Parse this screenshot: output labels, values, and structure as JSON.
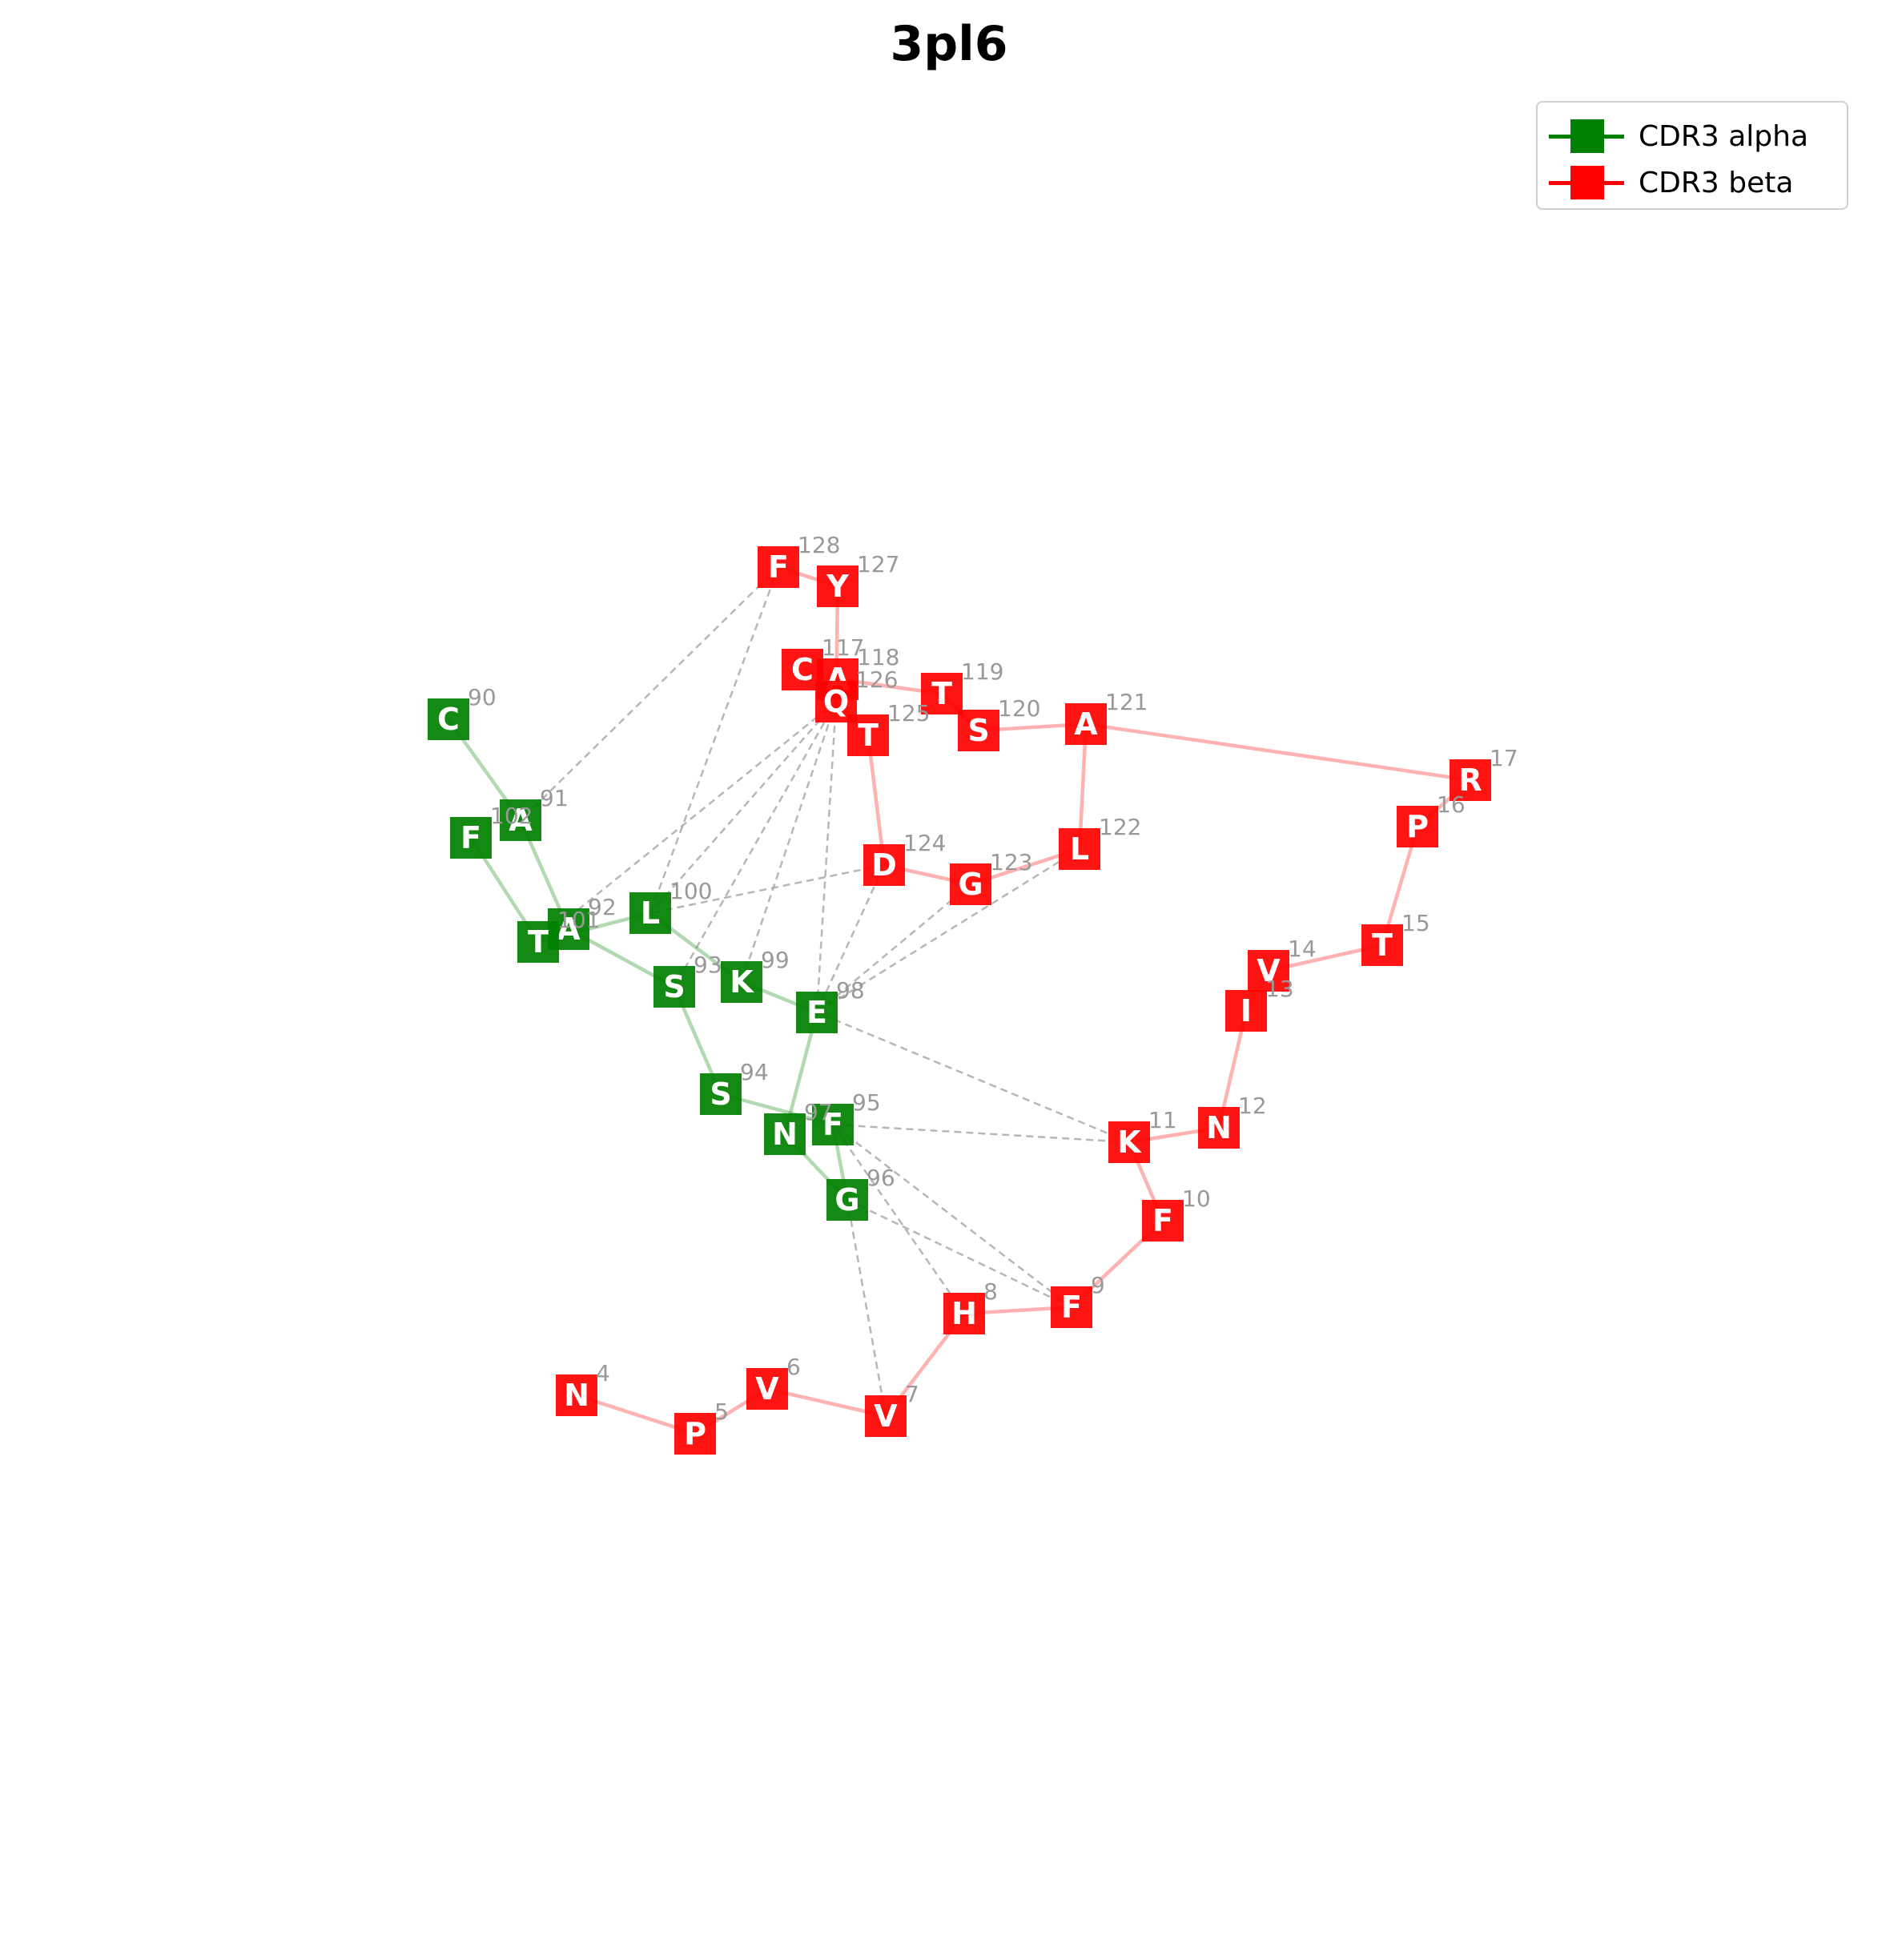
{
  "title": "3pl6",
  "legend": [
    {
      "label": "CDR3 alpha",
      "color": "#008000"
    },
    {
      "label": "CDR3 beta",
      "color": "#ff0000"
    }
  ],
  "colors": {
    "alpha": "#008000",
    "beta": "#ff0000",
    "contact": "#aaaaaa",
    "number": "#999999"
  },
  "chains": {
    "alpha": [
      {
        "n": "90",
        "aa": "C"
      },
      {
        "n": "91",
        "aa": "A"
      },
      {
        "n": "92",
        "aa": "A"
      },
      {
        "n": "93",
        "aa": "S"
      },
      {
        "n": "94",
        "aa": "S"
      },
      {
        "n": "95",
        "aa": "F"
      },
      {
        "n": "96",
        "aa": "G"
      },
      {
        "n": "97",
        "aa": "N"
      },
      {
        "n": "98",
        "aa": "E"
      },
      {
        "n": "99",
        "aa": "K"
      },
      {
        "n": "100",
        "aa": "L"
      },
      {
        "n": "101",
        "aa": "T"
      },
      {
        "n": "102",
        "aa": "F"
      }
    ],
    "beta_tail": [
      {
        "n": "117",
        "aa": "C"
      },
      {
        "n": "118",
        "aa": "A"
      },
      {
        "n": "119",
        "aa": "T"
      },
      {
        "n": "120",
        "aa": "S"
      },
      {
        "n": "121",
        "aa": "A"
      },
      {
        "n": "17",
        "aa": "R"
      },
      {
        "n": "16",
        "aa": "P"
      },
      {
        "n": "15",
        "aa": "T"
      },
      {
        "n": "14",
        "aa": "V"
      },
      {
        "n": "13",
        "aa": "I"
      },
      {
        "n": "12",
        "aa": "N"
      },
      {
        "n": "11",
        "aa": "K"
      },
      {
        "n": "10",
        "aa": "F"
      },
      {
        "n": "9",
        "aa": "F"
      },
      {
        "n": "8",
        "aa": "H"
      },
      {
        "n": "7",
        "aa": "V"
      },
      {
        "n": "6",
        "aa": "V"
      },
      {
        "n": "5",
        "aa": "P"
      },
      {
        "n": "4",
        "aa": "N"
      }
    ],
    "beta_loop": [
      {
        "n": "121",
        "aa": "A"
      },
      {
        "n": "122",
        "aa": "L"
      },
      {
        "n": "123",
        "aa": "G"
      },
      {
        "n": "124",
        "aa": "D"
      },
      {
        "n": "125",
        "aa": "T"
      },
      {
        "n": "126",
        "aa": "Q"
      },
      {
        "n": "127",
        "aa": "Y"
      },
      {
        "n": "128",
        "aa": "F"
      }
    ]
  },
  "contacts": [
    [
      "128",
      "91"
    ],
    [
      "128",
      "100"
    ],
    [
      "126",
      "100"
    ],
    [
      "126",
      "93"
    ],
    [
      "126",
      "99"
    ],
    [
      "126",
      "98"
    ],
    [
      "126",
      "101"
    ],
    [
      "124",
      "100"
    ],
    [
      "124",
      "98"
    ],
    [
      "123",
      "98"
    ],
    [
      "122",
      "98"
    ],
    [
      "11",
      "98"
    ],
    [
      "11",
      "95"
    ],
    [
      "9",
      "95"
    ],
    [
      "9",
      "96"
    ],
    [
      "8",
      "95"
    ],
    [
      "7",
      "96"
    ]
  ]
}
